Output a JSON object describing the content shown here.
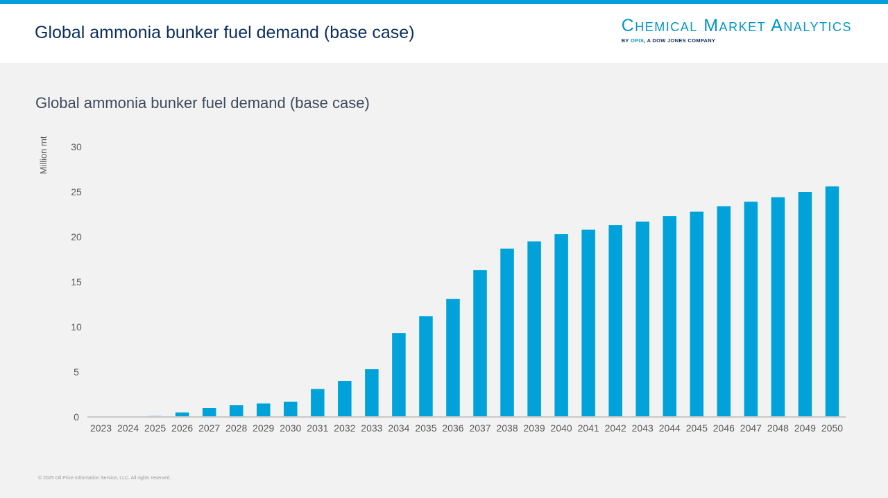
{
  "header": {
    "title": "Global ammonia bunker fuel demand (base case)",
    "logo": {
      "name": "Chemical Market Analytics",
      "by": "BY ",
      "opis": "OPIS",
      "tagline": ", A DOW JONES COMPANY"
    }
  },
  "footer": {
    "copyright": "© 2025 Oil Price Information Service, LLC. All rights reserved."
  },
  "colors": {
    "accent": "#009fdb",
    "bar": "#00a3d9",
    "title": "#0b2e5c"
  },
  "chart_data": {
    "type": "bar",
    "title": "Global ammonia bunker fuel demand (base case)",
    "xlabel": "",
    "ylabel": "Million mt",
    "ylim": [
      0,
      30
    ],
    "yticks": [
      0,
      5,
      10,
      15,
      20,
      25,
      30
    ],
    "grid": false,
    "categories": [
      "2023",
      "2024",
      "2025",
      "2026",
      "2027",
      "2028",
      "2029",
      "2030",
      "2031",
      "2032",
      "2033",
      "2034",
      "2035",
      "2036",
      "2037",
      "2038",
      "2039",
      "2040",
      "2041",
      "2042",
      "2043",
      "2044",
      "2045",
      "2046",
      "2047",
      "2048",
      "2049",
      "2050"
    ],
    "values": [
      0,
      0,
      0.1,
      0.5,
      1.0,
      1.3,
      1.5,
      1.7,
      3.1,
      4.0,
      5.3,
      9.3,
      11.2,
      13.1,
      16.3,
      18.7,
      19.5,
      20.3,
      20.8,
      21.3,
      21.7,
      22.3,
      22.8,
      23.4,
      23.9,
      24.4,
      25.0,
      25.6
    ]
  }
}
